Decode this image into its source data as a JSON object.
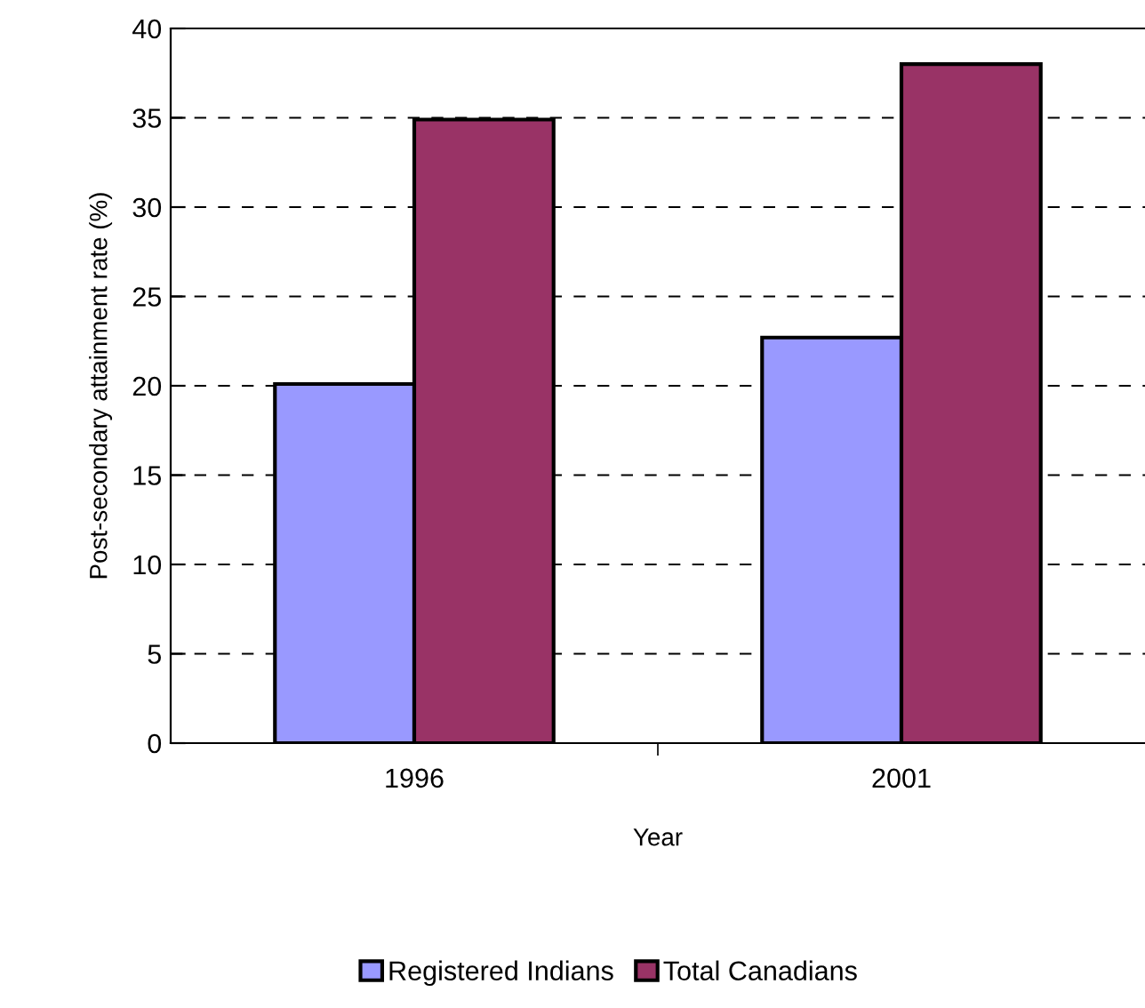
{
  "chart_data": {
    "type": "bar",
    "xlabel": "Year",
    "ylabel": "Post-secondary attainment rate (%)",
    "categories": [
      "1996",
      "2001"
    ],
    "series": [
      {
        "name": "Registered Indians",
        "color": "#9999ff",
        "values": [
          20.1,
          22.7
        ]
      },
      {
        "name": "Total Canadians",
        "color": "#993366",
        "values": [
          34.9,
          38.0
        ]
      }
    ],
    "ylim": [
      0,
      40
    ],
    "yticks": [
      0,
      5,
      10,
      15,
      20,
      25,
      30,
      35,
      40
    ],
    "grid": "y",
    "legend": "bottom"
  }
}
